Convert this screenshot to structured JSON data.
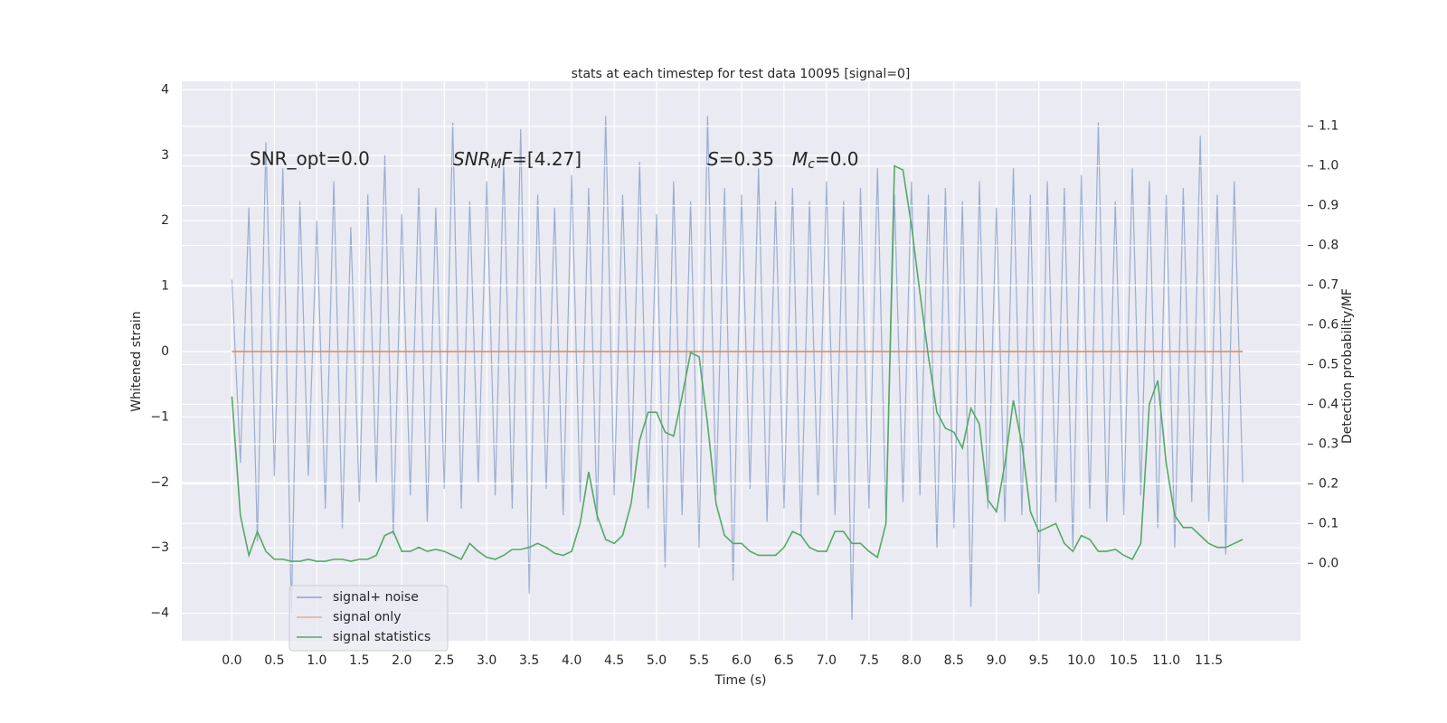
{
  "chart_data": {
    "type": "line",
    "title": "stats at each timestep for test data 10095 [signal=0]",
    "xlabel": "Time (s)",
    "ylabel": "Whitened strain",
    "y2label": "Detection probability/MF",
    "annotations": [
      "SNR_opt=0.0",
      [
        "SNR",
        "M",
        "F",
        "=[4.27]"
      ],
      [
        "S",
        "=0.35"
      ],
      [
        "M",
        "c",
        "=0.0"
      ]
    ],
    "xlim": [
      -0.59,
      12.58
    ],
    "ylim": [
      -4.42,
      4.13
    ],
    "y2lim": [
      -0.195,
      1.213
    ],
    "xticks": [
      {
        "value": 0,
        "label": "0.0"
      },
      0.5,
      {
        "value": 1,
        "label": "1.0"
      },
      1.5,
      {
        "value": 2,
        "label": "2.0"
      },
      2.5,
      {
        "value": 3,
        "label": "3.0"
      },
      3.5,
      {
        "value": 4,
        "label": "4.0"
      },
      4.5,
      {
        "value": 5,
        "label": "5.0"
      },
      5.5,
      {
        "value": 6,
        "label": "6.0"
      },
      6.5,
      {
        "value": 7,
        "label": "7.0"
      },
      7.5,
      {
        "value": 8,
        "label": "8.0"
      },
      8.5,
      {
        "value": 9,
        "label": "9.0"
      },
      9.5,
      {
        "value": 10,
        "label": "10.0"
      },
      10.5,
      {
        "value": 11,
        "label": "11.0"
      },
      11.5
    ],
    "yticks": [
      {
        "value": -4,
        "label": "−4"
      },
      {
        "value": -3,
        "label": "−3"
      },
      {
        "value": -2,
        "label": "−2"
      },
      {
        "value": -1,
        "label": "−1"
      },
      0,
      1,
      2,
      3,
      4
    ],
    "y2ticks": [
      {
        "value": 0,
        "label": "0.0"
      },
      0.1,
      0.2,
      0.3,
      0.4,
      0.5,
      0.6,
      0.7,
      0.8,
      0.9,
      {
        "value": 1,
        "label": "1.0"
      },
      1.1
    ],
    "grid": true,
    "legend": "lower left",
    "x": [
      0,
      0.1,
      0.2,
      0.3,
      0.4,
      0.5,
      0.6,
      0.7,
      0.8,
      0.9,
      1,
      1.1,
      1.2,
      1.3,
      1.4,
      1.5,
      1.6,
      1.7,
      1.8,
      1.9,
      2,
      2.1,
      2.2,
      2.3,
      2.4,
      2.5,
      2.6,
      2.7,
      2.8,
      2.9,
      3,
      3.1,
      3.2,
      3.3,
      3.4,
      3.5,
      3.6,
      3.7,
      3.8,
      3.9,
      4,
      4.1,
      4.2,
      4.3,
      4.4,
      4.5,
      4.6,
      4.7,
      4.8,
      4.9,
      5,
      5.1,
      5.2,
      5.3,
      5.4,
      5.5,
      5.6,
      5.7,
      5.8,
      5.9,
      6,
      6.1,
      6.2,
      6.3,
      6.4,
      6.5,
      6.6,
      6.7,
      6.8,
      6.9,
      7,
      7.1,
      7.2,
      7.3,
      7.4,
      7.5,
      7.6,
      7.7,
      7.8,
      7.9,
      8,
      8.1,
      8.2,
      8.3,
      8.4,
      8.5,
      8.6,
      8.7,
      8.8,
      8.9,
      9,
      9.1,
      9.2,
      9.3,
      9.4,
      9.5,
      9.6,
      9.7,
      9.8,
      9.9,
      10,
      10.1,
      10.2,
      10.3,
      10.4,
      10.5,
      10.6,
      10.7,
      10.8,
      10.9,
      11,
      11.1,
      11.2,
      11.3,
      11.4,
      11.5,
      11.6,
      11.7,
      11.8,
      11.9
    ],
    "series": [
      {
        "name": "signal+ noise",
        "color": "#4c72b0",
        "values": [
          1.1,
          -1.7,
          2.2,
          -2.9,
          3.2,
          -1.9,
          2.8,
          -4.0,
          2.3,
          -1.9,
          2.0,
          -2.4,
          2.6,
          -2.7,
          1.9,
          -2.3,
          2.4,
          -2.0,
          3.0,
          -2.8,
          2.1,
          -2.2,
          2.5,
          -2.6,
          2.2,
          -2.1,
          3.5,
          -2.4,
          2.3,
          -2.0,
          2.6,
          -2.2,
          2.9,
          -2.4,
          3.4,
          -3.7,
          2.4,
          -2.1,
          2.2,
          -2.5,
          2.7,
          -2.3,
          2.5,
          -2.6,
          3.6,
          -2.2,
          2.4,
          -2.0,
          2.9,
          -2.4,
          2.1,
          -3.3,
          2.6,
          -2.5,
          2.3,
          -3.0,
          3.6,
          -2.2,
          2.5,
          -3.5,
          2.4,
          -2.1,
          2.8,
          -2.6,
          2.3,
          -2.4,
          2.5,
          -2.8,
          2.3,
          -2.2,
          2.6,
          -2.5,
          2.3,
          -4.1,
          2.5,
          -2.4,
          2.8,
          -2.6,
          2.4,
          -2.3,
          2.6,
          -2.2,
          2.4,
          -3.0,
          2.5,
          -2.7,
          2.3,
          -3.9,
          2.6,
          -2.4,
          2.2,
          -2.6,
          2.8,
          -2.5,
          2.4,
          -3.7,
          2.6,
          -2.3,
          2.5,
          -3.0,
          2.7,
          -2.4,
          3.5,
          -2.6,
          2.3,
          -2.5,
          2.8,
          -2.2,
          2.6,
          -2.7,
          2.4,
          -3.0,
          2.5,
          -2.3,
          3.3,
          -2.6,
          2.4,
          -3.1,
          2.6,
          -2.0
        ]
      },
      {
        "name": "signal only",
        "color": "#dd8452",
        "values": [
          0,
          0,
          0,
          0,
          0,
          0,
          0,
          0,
          0,
          0,
          0,
          0,
          0,
          0,
          0,
          0,
          0,
          0,
          0,
          0,
          0,
          0,
          0,
          0,
          0,
          0,
          0,
          0,
          0,
          0,
          0,
          0,
          0,
          0,
          0,
          0,
          0,
          0,
          0,
          0,
          0,
          0,
          0,
          0,
          0,
          0,
          0,
          0,
          0,
          0,
          0,
          0,
          0,
          0,
          0,
          0,
          0,
          0,
          0,
          0,
          0,
          0,
          0,
          0,
          0,
          0,
          0,
          0,
          0,
          0,
          0,
          0,
          0,
          0,
          0,
          0,
          0,
          0,
          0,
          0,
          0,
          0,
          0,
          0,
          0,
          0,
          0,
          0,
          0,
          0,
          0,
          0,
          0,
          0,
          0,
          0,
          0,
          0,
          0,
          0,
          0,
          0,
          0,
          0,
          0,
          0,
          0,
          0,
          0,
          0,
          0,
          0,
          0,
          0,
          0,
          0,
          0,
          0,
          0,
          0
        ]
      },
      {
        "name": "signal statistics",
        "color": "#55a868",
        "axis": "y2",
        "values": [
          0.42,
          0.12,
          0.02,
          0.08,
          0.03,
          0.01,
          0.01,
          0.005,
          0.005,
          0.01,
          0.005,
          0.005,
          0.01,
          0.01,
          0.005,
          0.01,
          0.01,
          0.02,
          0.07,
          0.08,
          0.03,
          0.03,
          0.04,
          0.03,
          0.035,
          0.03,
          0.02,
          0.01,
          0.05,
          0.03,
          0.015,
          0.01,
          0.02,
          0.035,
          0.035,
          0.04,
          0.05,
          0.04,
          0.025,
          0.02,
          0.03,
          0.1,
          0.23,
          0.12,
          0.06,
          0.05,
          0.07,
          0.15,
          0.31,
          0.38,
          0.38,
          0.33,
          0.32,
          0.42,
          0.53,
          0.52,
          0.35,
          0.15,
          0.07,
          0.05,
          0.05,
          0.03,
          0.02,
          0.02,
          0.02,
          0.04,
          0.08,
          0.07,
          0.04,
          0.03,
          0.03,
          0.08,
          0.08,
          0.05,
          0.05,
          0.03,
          0.015,
          0.1,
          1.0,
          0.99,
          0.85,
          0.68,
          0.52,
          0.38,
          0.34,
          0.33,
          0.29,
          0.39,
          0.35,
          0.16,
          0.13,
          0.25,
          0.41,
          0.3,
          0.13,
          0.08,
          0.09,
          0.1,
          0.05,
          0.03,
          0.07,
          0.06,
          0.03,
          0.03,
          0.035,
          0.02,
          0.01,
          0.05,
          0.4,
          0.46,
          0.25,
          0.12,
          0.09,
          0.09,
          0.07,
          0.05,
          0.04,
          0.04,
          0.05,
          0.06
        ]
      }
    ]
  }
}
